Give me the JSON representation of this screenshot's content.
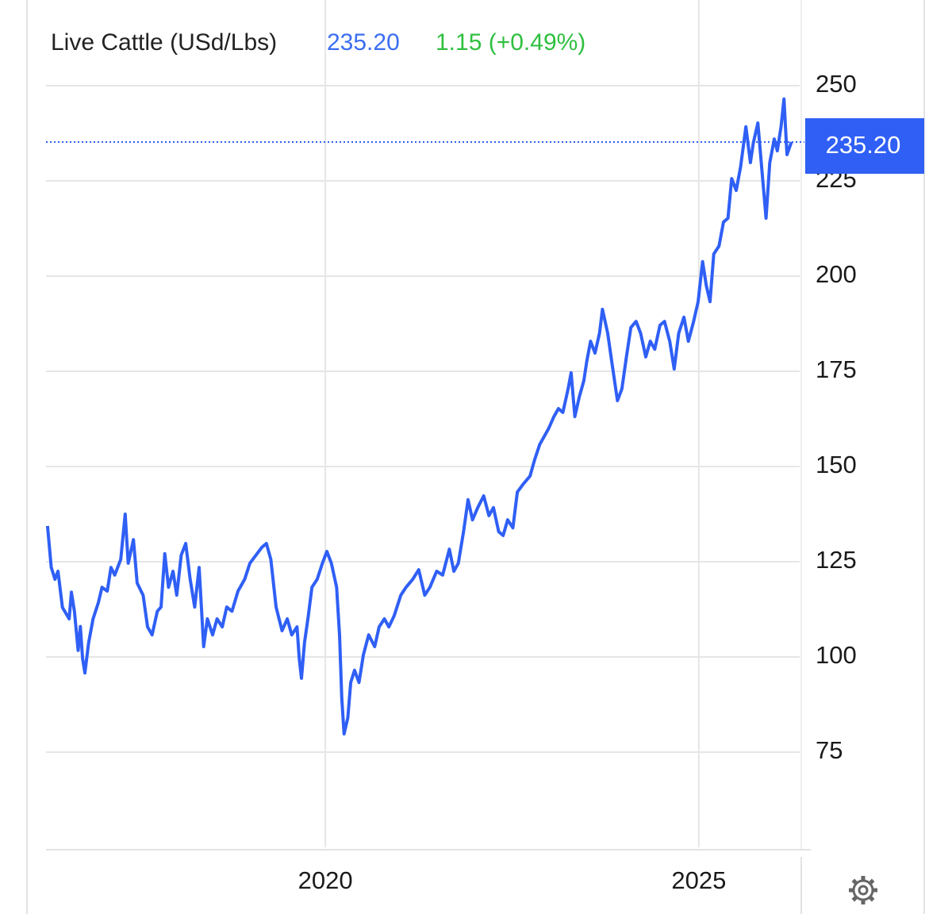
{
  "chart_data": {
    "type": "line",
    "title": "Live Cattle (USd/Lbs)",
    "price": "235.20",
    "change": "1.15 (+0.49%)",
    "color": "#2f5ff5",
    "price_color": "#3a6df0",
    "change_color": "#2fbf3f",
    "grid": true,
    "xlim": [
      2016.26,
      2026.35
    ],
    "xticks": [
      2020,
      2025
    ],
    "ylim": [
      50,
      260
    ],
    "yticks": [
      75,
      100,
      125,
      150,
      175,
      200,
      225,
      250
    ],
    "x": [
      2016.28,
      2016.33,
      2016.38,
      2016.42,
      2016.48,
      2016.57,
      2016.6,
      2016.64,
      2016.69,
      2016.72,
      2016.75,
      2016.78,
      2016.83,
      2016.89,
      2016.96,
      2017.01,
      2017.08,
      2017.13,
      2017.18,
      2017.26,
      2017.32,
      2017.36,
      2017.43,
      2017.48,
      2017.56,
      2017.62,
      2017.68,
      2017.75,
      2017.8,
      2017.85,
      2017.9,
      2017.96,
      2018.01,
      2018.07,
      2018.13,
      2018.19,
      2018.25,
      2018.31,
      2018.37,
      2018.42,
      2018.49,
      2018.55,
      2018.62,
      2018.68,
      2018.75,
      2018.83,
      2018.92,
      2018.99,
      2019.07,
      2019.15,
      2019.21,
      2019.27,
      2019.34,
      2019.42,
      2019.49,
      2019.55,
      2019.62,
      2019.65,
      2019.68,
      2019.72,
      2019.77,
      2019.82,
      2019.89,
      2019.96,
      2020.02,
      2020.08,
      2020.15,
      2020.19,
      2020.22,
      2020.25,
      2020.3,
      2020.34,
      2020.39,
      2020.45,
      2020.51,
      2020.58,
      2020.66,
      2020.72,
      2020.79,
      2020.85,
      2020.92,
      2021.01,
      2021.08,
      2021.17,
      2021.25,
      2021.33,
      2021.4,
      2021.49,
      2021.57,
      2021.66,
      2021.72,
      2021.78,
      2021.85,
      2021.91,
      2021.97,
      2022.04,
      2022.12,
      2022.19,
      2022.25,
      2022.32,
      2022.38,
      2022.44,
      2022.51,
      2022.57,
      2022.65,
      2022.74,
      2022.8,
      2022.87,
      2022.93,
      2022.99,
      2023.06,
      2023.12,
      2023.18,
      2023.25,
      2023.29,
      2023.34,
      2023.4,
      2023.46,
      2023.5,
      2023.55,
      2023.61,
      2023.67,
      2023.71,
      2023.78,
      2023.84,
      2023.91,
      2023.97,
      2024.03,
      2024.09,
      2024.16,
      2024.22,
      2024.29,
      2024.35,
      2024.41,
      2024.48,
      2024.54,
      2024.61,
      2024.67,
      2024.73,
      2024.8,
      2024.86,
      2024.93,
      2024.99,
      2025.05,
      2025.1,
      2025.15,
      2025.2,
      2025.27,
      2025.33,
      2025.39,
      2025.44,
      2025.5,
      2025.56,
      2025.63,
      2025.69,
      2025.73,
      2025.79,
      2025.84,
      2025.9,
      2025.95,
      2026.01,
      2026.05,
      2026.1,
      2026.14,
      2026.18,
      2026.24
    ],
    "values": [
      134.4,
      123.5,
      120.4,
      122.5,
      113,
      110,
      117,
      112,
      101.7,
      108,
      99.6,
      95.8,
      103.7,
      110,
      114.2,
      118.3,
      117.3,
      123.5,
      121.5,
      125.6,
      137.5,
      124.6,
      130.8,
      119.4,
      116.2,
      107.9,
      105.8,
      112,
      113.1,
      127.1,
      118.3,
      122.5,
      116.2,
      126.7,
      129.8,
      120.4,
      113.1,
      123.5,
      102.7,
      110,
      105.8,
      110,
      107.9,
      113.1,
      112,
      117.3,
      120.4,
      124.6,
      126.7,
      128.8,
      129.8,
      125.6,
      113.1,
      106.9,
      110,
      105.8,
      107.9,
      99.6,
      94.4,
      103.7,
      110.6,
      118.3,
      120.4,
      124.6,
      127.7,
      124.6,
      118.3,
      105.8,
      89.2,
      79.8,
      84,
      93.3,
      96.5,
      93.3,
      100.6,
      105.8,
      102.7,
      107.9,
      110,
      107.9,
      110.8,
      116.2,
      118.3,
      120.4,
      122.9,
      116.2,
      118.3,
      122.5,
      121.5,
      128.3,
      122.5,
      124.6,
      132.9,
      141.3,
      136,
      139.2,
      142.3,
      137.1,
      139.2,
      132.9,
      131.9,
      136,
      133.9,
      143.3,
      145.4,
      147.5,
      151.7,
      155.8,
      157.9,
      160,
      163.1,
      165.2,
      164.2,
      170.4,
      174.6,
      163.1,
      168.3,
      172.5,
      177.7,
      182.9,
      179.8,
      185,
      191.3,
      185,
      176.7,
      167.3,
      170.4,
      178.8,
      186.5,
      188.1,
      185,
      178.8,
      182.9,
      180.8,
      187.1,
      188.1,
      182.9,
      175.6,
      185,
      189.2,
      182.9,
      188.1,
      193.3,
      203.8,
      197.5,
      193.3,
      205.8,
      207.9,
      214.2,
      215.2,
      225.6,
      222.5,
      228.8,
      239.2,
      229.8,
      235,
      240.2,
      228.8,
      215.2,
      229.8,
      236,
      232.9,
      239.2,
      246.5,
      231.9,
      235.2
    ]
  }
}
